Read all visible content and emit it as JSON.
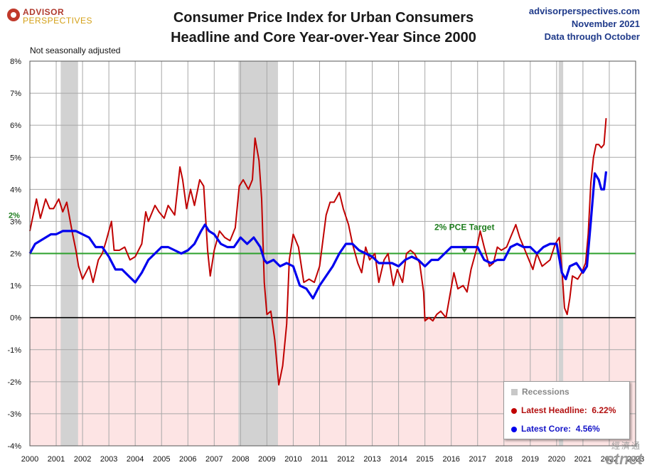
{
  "header": {
    "logo_line1": "ADVISOR",
    "logo_line2": "PERSPECTIVES",
    "title_line1": "Consumer Price Index for Urban Consumers",
    "title_line2": "Headline and Core Year-over-Year Since 2000",
    "source": "advisorperspectives.com",
    "date": "November 2021",
    "data_through": "Data through October",
    "note": "Not seasonally adjusted"
  },
  "legend": {
    "recessions": "Recessions",
    "headline_label": "Latest Headline:",
    "headline_value": "6.22%",
    "core_label": "Latest Core:",
    "core_value": "4.56%"
  },
  "watermark": {
    "text": "etnet",
    "cn": "經濟通"
  },
  "chart_data": {
    "type": "line",
    "xlabel": "",
    "ylabel": "",
    "xlim": [
      2000,
      2023
    ],
    "ylim": [
      -4,
      8
    ],
    "y_ticks": [
      -4,
      -3,
      -2,
      -1,
      0,
      1,
      2,
      3,
      4,
      5,
      6,
      7,
      8
    ],
    "y_tick_labels": [
      "-4%",
      "-3%",
      "-2%",
      "-1%",
      "0%",
      "1%",
      "2%",
      "3%",
      "4%",
      "5%",
      "6%",
      "7%",
      "8%"
    ],
    "x_ticks": [
      2000,
      2001,
      2002,
      2003,
      2004,
      2005,
      2006,
      2007,
      2008,
      2009,
      2010,
      2011,
      2012,
      2013,
      2014,
      2015,
      2016,
      2017,
      2018,
      2019,
      2020,
      2021,
      2022,
      2023
    ],
    "x_tick_labels": [
      "2000",
      "2001",
      "2002",
      "2003",
      "2004",
      "2005",
      "2006",
      "2007",
      "2008",
      "2009",
      "2010",
      "2011",
      "2012",
      "2013",
      "2014",
      "2015",
      "2016",
      "2017",
      "2018",
      "2019",
      "2020",
      "2021",
      "2022",
      "2023"
    ],
    "grid": true,
    "recessions": [
      [
        2001.17,
        2001.83
      ],
      [
        2007.92,
        2009.42
      ],
      [
        2020.08,
        2020.25
      ]
    ],
    "target": {
      "value": 2,
      "label": "2% PCE Target",
      "axis_label": "2%",
      "color": "#2ca02c"
    },
    "colors": {
      "headline": "#c00000",
      "core": "#0000ee",
      "negative_fill": "#fde4e4",
      "recession": "#d2d2d2"
    },
    "series": [
      {
        "name": "Headline",
        "color": "#c00000",
        "points": [
          [
            2000.0,
            2.7
          ],
          [
            2000.25,
            3.7
          ],
          [
            2000.4,
            3.1
          ],
          [
            2000.6,
            3.7
          ],
          [
            2000.75,
            3.4
          ],
          [
            2000.9,
            3.4
          ],
          [
            2001.1,
            3.7
          ],
          [
            2001.25,
            3.3
          ],
          [
            2001.4,
            3.6
          ],
          [
            2001.6,
            2.7
          ],
          [
            2001.75,
            2.1
          ],
          [
            2001.85,
            1.6
          ],
          [
            2002.0,
            1.2
          ],
          [
            2002.25,
            1.6
          ],
          [
            2002.4,
            1.1
          ],
          [
            2002.6,
            1.8
          ],
          [
            2002.75,
            2.0
          ],
          [
            2002.9,
            2.4
          ],
          [
            2003.1,
            3.0
          ],
          [
            2003.2,
            2.1
          ],
          [
            2003.4,
            2.1
          ],
          [
            2003.6,
            2.2
          ],
          [
            2003.8,
            1.8
          ],
          [
            2004.0,
            1.9
          ],
          [
            2004.25,
            2.3
          ],
          [
            2004.4,
            3.3
          ],
          [
            2004.5,
            3.0
          ],
          [
            2004.75,
            3.5
          ],
          [
            2004.9,
            3.3
          ],
          [
            2005.1,
            3.1
          ],
          [
            2005.25,
            3.5
          ],
          [
            2005.5,
            3.2
          ],
          [
            2005.7,
            4.7
          ],
          [
            2005.8,
            4.3
          ],
          [
            2005.95,
            3.4
          ],
          [
            2006.1,
            4.0
          ],
          [
            2006.25,
            3.5
          ],
          [
            2006.45,
            4.3
          ],
          [
            2006.6,
            4.1
          ],
          [
            2006.75,
            2.1
          ],
          [
            2006.85,
            1.3
          ],
          [
            2007.0,
            2.1
          ],
          [
            2007.2,
            2.7
          ],
          [
            2007.4,
            2.5
          ],
          [
            2007.6,
            2.4
          ],
          [
            2007.8,
            2.8
          ],
          [
            2007.95,
            4.1
          ],
          [
            2008.1,
            4.3
          ],
          [
            2008.3,
            4.0
          ],
          [
            2008.45,
            4.3
          ],
          [
            2008.55,
            5.6
          ],
          [
            2008.7,
            4.9
          ],
          [
            2008.8,
            3.7
          ],
          [
            2008.9,
            1.1
          ],
          [
            2009.0,
            0.1
          ],
          [
            2009.15,
            0.2
          ],
          [
            2009.3,
            -0.7
          ],
          [
            2009.45,
            -2.1
          ],
          [
            2009.6,
            -1.5
          ],
          [
            2009.75,
            -0.2
          ],
          [
            2009.85,
            1.8
          ],
          [
            2010.0,
            2.6
          ],
          [
            2010.2,
            2.2
          ],
          [
            2010.4,
            1.1
          ],
          [
            2010.6,
            1.2
          ],
          [
            2010.8,
            1.1
          ],
          [
            2011.0,
            1.6
          ],
          [
            2011.25,
            3.2
          ],
          [
            2011.4,
            3.6
          ],
          [
            2011.55,
            3.6
          ],
          [
            2011.75,
            3.9
          ],
          [
            2011.9,
            3.4
          ],
          [
            2012.1,
            2.9
          ],
          [
            2012.25,
            2.3
          ],
          [
            2012.45,
            1.7
          ],
          [
            2012.6,
            1.4
          ],
          [
            2012.75,
            2.2
          ],
          [
            2012.9,
            1.8
          ],
          [
            2013.1,
            2.0
          ],
          [
            2013.25,
            1.1
          ],
          [
            2013.45,
            1.8
          ],
          [
            2013.6,
            2.0
          ],
          [
            2013.8,
            1.0
          ],
          [
            2013.95,
            1.5
          ],
          [
            2014.15,
            1.1
          ],
          [
            2014.3,
            2.0
          ],
          [
            2014.45,
            2.1
          ],
          [
            2014.6,
            2.0
          ],
          [
            2014.8,
            1.7
          ],
          [
            2014.95,
            0.8
          ],
          [
            2015.0,
            -0.1
          ],
          [
            2015.15,
            0.0
          ],
          [
            2015.3,
            -0.1
          ],
          [
            2015.45,
            0.1
          ],
          [
            2015.6,
            0.2
          ],
          [
            2015.8,
            0.0
          ],
          [
            2015.95,
            0.7
          ],
          [
            2016.1,
            1.4
          ],
          [
            2016.25,
            0.9
          ],
          [
            2016.45,
            1.0
          ],
          [
            2016.6,
            0.8
          ],
          [
            2016.75,
            1.5
          ],
          [
            2016.95,
            2.1
          ],
          [
            2017.1,
            2.7
          ],
          [
            2017.25,
            2.2
          ],
          [
            2017.45,
            1.6
          ],
          [
            2017.6,
            1.7
          ],
          [
            2017.75,
            2.2
          ],
          [
            2017.9,
            2.1
          ],
          [
            2018.1,
            2.2
          ],
          [
            2018.25,
            2.5
          ],
          [
            2018.45,
            2.9
          ],
          [
            2018.6,
            2.5
          ],
          [
            2018.75,
            2.2
          ],
          [
            2018.9,
            1.9
          ],
          [
            2019.1,
            1.5
          ],
          [
            2019.25,
            2.0
          ],
          [
            2019.45,
            1.6
          ],
          [
            2019.6,
            1.7
          ],
          [
            2019.75,
            1.8
          ],
          [
            2019.95,
            2.3
          ],
          [
            2020.1,
            2.5
          ],
          [
            2020.2,
            1.5
          ],
          [
            2020.3,
            0.3
          ],
          [
            2020.4,
            0.1
          ],
          [
            2020.5,
            0.6
          ],
          [
            2020.6,
            1.3
          ],
          [
            2020.8,
            1.2
          ],
          [
            2020.95,
            1.4
          ],
          [
            2021.1,
            1.7
          ],
          [
            2021.2,
            2.6
          ],
          [
            2021.3,
            4.2
          ],
          [
            2021.4,
            5.0
          ],
          [
            2021.5,
            5.4
          ],
          [
            2021.6,
            5.4
          ],
          [
            2021.7,
            5.3
          ],
          [
            2021.8,
            5.4
          ],
          [
            2021.88,
            6.22
          ]
        ]
      },
      {
        "name": "Core",
        "color": "#0000ee",
        "points": [
          [
            2000.0,
            2.0
          ],
          [
            2000.2,
            2.3
          ],
          [
            2000.4,
            2.4
          ],
          [
            2000.6,
            2.5
          ],
          [
            2000.8,
            2.6
          ],
          [
            2001.0,
            2.6
          ],
          [
            2001.25,
            2.7
          ],
          [
            2001.5,
            2.7
          ],
          [
            2001.75,
            2.7
          ],
          [
            2002.0,
            2.6
          ],
          [
            2002.25,
            2.5
          ],
          [
            2002.5,
            2.2
          ],
          [
            2002.75,
            2.2
          ],
          [
            2003.0,
            1.9
          ],
          [
            2003.25,
            1.5
          ],
          [
            2003.5,
            1.5
          ],
          [
            2003.75,
            1.3
          ],
          [
            2004.0,
            1.1
          ],
          [
            2004.25,
            1.4
          ],
          [
            2004.5,
            1.8
          ],
          [
            2004.75,
            2.0
          ],
          [
            2005.0,
            2.2
          ],
          [
            2005.25,
            2.2
          ],
          [
            2005.5,
            2.1
          ],
          [
            2005.75,
            2.0
          ],
          [
            2006.0,
            2.1
          ],
          [
            2006.25,
            2.3
          ],
          [
            2006.5,
            2.7
          ],
          [
            2006.65,
            2.9
          ],
          [
            2006.8,
            2.7
          ],
          [
            2007.0,
            2.6
          ],
          [
            2007.25,
            2.3
          ],
          [
            2007.5,
            2.2
          ],
          [
            2007.75,
            2.2
          ],
          [
            2008.0,
            2.5
          ],
          [
            2008.25,
            2.3
          ],
          [
            2008.5,
            2.5
          ],
          [
            2008.75,
            2.2
          ],
          [
            2008.9,
            1.8
          ],
          [
            2009.0,
            1.7
          ],
          [
            2009.25,
            1.8
          ],
          [
            2009.5,
            1.6
          ],
          [
            2009.75,
            1.7
          ],
          [
            2010.0,
            1.6
          ],
          [
            2010.25,
            1.0
          ],
          [
            2010.5,
            0.9
          ],
          [
            2010.75,
            0.6
          ],
          [
            2011.0,
            1.0
          ],
          [
            2011.25,
            1.3
          ],
          [
            2011.5,
            1.6
          ],
          [
            2011.75,
            2.0
          ],
          [
            2012.0,
            2.3
          ],
          [
            2012.25,
            2.3
          ],
          [
            2012.5,
            2.1
          ],
          [
            2012.75,
            2.0
          ],
          [
            2013.0,
            1.9
          ],
          [
            2013.25,
            1.7
          ],
          [
            2013.5,
            1.7
          ],
          [
            2013.75,
            1.7
          ],
          [
            2014.0,
            1.6
          ],
          [
            2014.25,
            1.8
          ],
          [
            2014.5,
            1.9
          ],
          [
            2014.75,
            1.8
          ],
          [
            2015.0,
            1.6
          ],
          [
            2015.25,
            1.8
          ],
          [
            2015.5,
            1.8
          ],
          [
            2015.75,
            2.0
          ],
          [
            2016.0,
            2.2
          ],
          [
            2016.25,
            2.2
          ],
          [
            2016.5,
            2.2
          ],
          [
            2016.75,
            2.2
          ],
          [
            2017.0,
            2.2
          ],
          [
            2017.25,
            1.8
          ],
          [
            2017.5,
            1.7
          ],
          [
            2017.75,
            1.8
          ],
          [
            2018.0,
            1.8
          ],
          [
            2018.25,
            2.2
          ],
          [
            2018.5,
            2.3
          ],
          [
            2018.75,
            2.2
          ],
          [
            2019.0,
            2.2
          ],
          [
            2019.25,
            2.0
          ],
          [
            2019.5,
            2.2
          ],
          [
            2019.75,
            2.3
          ],
          [
            2020.0,
            2.3
          ],
          [
            2020.2,
            1.4
          ],
          [
            2020.35,
            1.2
          ],
          [
            2020.5,
            1.6
          ],
          [
            2020.75,
            1.7
          ],
          [
            2021.0,
            1.4
          ],
          [
            2021.15,
            1.6
          ],
          [
            2021.3,
            3.0
          ],
          [
            2021.45,
            4.5
          ],
          [
            2021.6,
            4.3
          ],
          [
            2021.7,
            4.0
          ],
          [
            2021.8,
            4.0
          ],
          [
            2021.88,
            4.56
          ]
        ]
      }
    ]
  }
}
